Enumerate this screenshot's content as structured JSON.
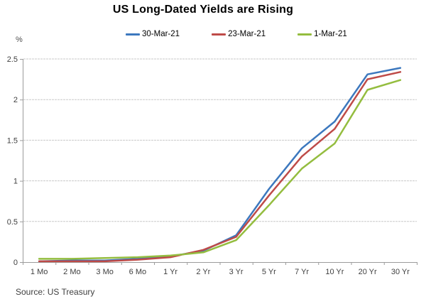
{
  "title": "US Long-Dated Yields are Rising",
  "unit_label": "%",
  "source": "Source: US Treasury",
  "colors": {
    "series_blue": "#3C78BE",
    "series_red": "#BE4B48",
    "series_green": "#94BD3F",
    "gridline": "#c9c9c9",
    "axis": "#9b9b9b",
    "tick_label": "#404040",
    "title_text": "#000000"
  },
  "chart_data": {
    "type": "line",
    "title": "US Long-Dated Yields are Rising",
    "categories": [
      "1 Mo",
      "2 Mo",
      "3 Mo",
      "6 Mo",
      "1 Yr",
      "2 Yr",
      "3 Yr",
      "5 Yr",
      "7 Yr",
      "10 Yr",
      "20 Yr",
      "30 Yr"
    ],
    "series": [
      {
        "name": "30-Mar-21",
        "color": "#3C78BE",
        "values": [
          0.01,
          0.02,
          0.02,
          0.04,
          0.07,
          0.14,
          0.33,
          0.9,
          1.4,
          1.73,
          2.31,
          2.39
        ]
      },
      {
        "name": "23-Mar-21",
        "color": "#BE4B48",
        "values": [
          0.01,
          0.01,
          0.01,
          0.03,
          0.06,
          0.15,
          0.31,
          0.82,
          1.3,
          1.64,
          2.25,
          2.34
        ]
      },
      {
        "name": "1-Mar-21",
        "color": "#94BD3F",
        "values": [
          0.04,
          0.04,
          0.05,
          0.06,
          0.08,
          0.12,
          0.27,
          0.7,
          1.15,
          1.46,
          2.12,
          2.24
        ]
      }
    ],
    "xlabel": "",
    "ylabel": "%",
    "ylim": [
      0,
      2.5
    ],
    "yticks": [
      "0",
      "0.5",
      "1",
      "1.5",
      "2",
      "2.5"
    ],
    "ytick_values": [
      0,
      0.5,
      1,
      1.5,
      2,
      2.5
    ],
    "grid": true,
    "legend_position": "top"
  }
}
